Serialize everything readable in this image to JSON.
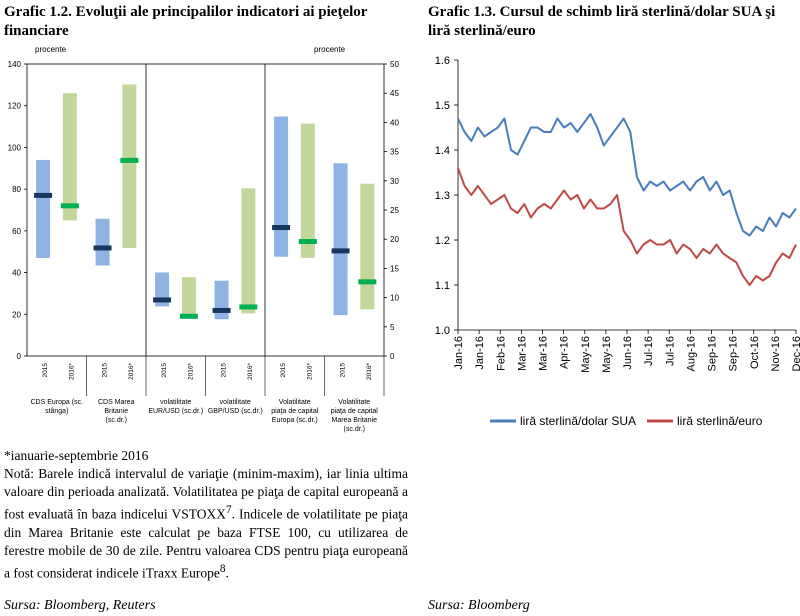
{
  "chart1": {
    "title": "Grafic 1.2.  Evoluţii ale principalilor indicatori ai pieţelor financiare",
    "left_unit": "procente",
    "right_unit": "procente",
    "left_axis": {
      "min": 0,
      "max": 140,
      "ticks": [
        0,
        20,
        40,
        60,
        80,
        100,
        120,
        140
      ]
    },
    "right_axis": {
      "min": 0,
      "max": 50,
      "ticks": [
        0,
        5,
        10,
        15,
        20,
        25,
        30,
        35,
        40,
        45,
        50
      ]
    },
    "chart_data": {
      "type": "bar",
      "title": "Evoluţii ale principalilor indicatori ai pieţelor financiare",
      "groups": [
        {
          "label": "CDS Europa (sc. stânga)",
          "axis": "left",
          "bars": [
            {
              "period": "2015",
              "min": 47,
              "max": 94,
              "last": 77
            },
            {
              "period": "2016*",
              "min": 65,
              "max": 126,
              "last": 72
            }
          ]
        },
        {
          "label": "CDS Marea Britanie (sc.dr.)",
          "axis": "right",
          "bars": [
            {
              "period": "2015",
              "min": 15.5,
              "max": 23.5,
              "last": 18.5
            },
            {
              "period": "2016*",
              "min": 18.5,
              "max": 46.5,
              "last": 33.5
            }
          ]
        },
        {
          "label": "volatilitate EUR/USD (sc.dr.)",
          "axis": "right",
          "bars": [
            {
              "period": "2015",
              "min": 8.5,
              "max": 14.3,
              "last": 9.6
            },
            {
              "period": "2016*",
              "min": 6.5,
              "max": 13.5,
              "last": 6.8
            }
          ]
        },
        {
          "label": "volatilitate GBP/USD (sc.dr.)",
          "axis": "right",
          "bars": [
            {
              "period": "2015",
              "min": 6.3,
              "max": 12.9,
              "last": 7.8
            },
            {
              "period": "2016*",
              "min": 7.3,
              "max": 28.7,
              "last": 8.4
            }
          ]
        },
        {
          "label": "Volatilitate piaţa de capital Europa (sc.dr.)",
          "axis": "right",
          "bars": [
            {
              "period": "2015",
              "min": 17.0,
              "max": 41.0,
              "last": 22.0
            },
            {
              "period": "2016*",
              "min": 16.8,
              "max": 39.8,
              "last": 19.6
            }
          ]
        },
        {
          "label": "Volatilitate piaţa de capital Marea Britanie (sc.dr.)",
          "axis": "right",
          "bars": [
            {
              "period": "2015",
              "min": 7.0,
              "max": 33.0,
              "last": 18.0
            },
            {
              "period": "2016*",
              "min": 8.0,
              "max": 29.5,
              "last": 12.7
            }
          ]
        }
      ]
    },
    "colors": {
      "bar_2015": "#8fb4e3",
      "bar_2016": "#c3d69b",
      "last_2015": "#17375e",
      "last_2016": "#00b050"
    },
    "note_star": "*ianuarie-septembrie 2016",
    "note_text": "Notă: Barele indică intervalul de variaţie (minim-maxim), iar linia ultima valoare din perioada analizată. Volatilitatea pe piaţa de capital europeană a fost evaluată în baza indicelui VSTOXX",
    "note_sup1": "7",
    "note_text2": ". Indicele de volatilitate pe piaţa din Marea Britanie este calculat pe baza FTSE 100, cu utilizarea de ferestre mobile de 30 de zile. Pentru valoarea CDS pentru piaţa europeană a fost considerat indicele iTraxx Europe",
    "note_sup2": "8",
    "note_end": ".",
    "source": "Sursa: Bloomberg,  Reuters"
  },
  "chart2": {
    "title": "Grafic 1.3.  Cursul de schimb liră sterlină/dolar SUA şi liră sterlină/euro",
    "y_axis": {
      "min": 1.0,
      "max": 1.6,
      "ticks": [
        "1.0",
        "1.1",
        "1.2",
        "1.3",
        "1.4",
        "1.5",
        "1.6"
      ]
    },
    "x_labels": [
      "Jan-16",
      "Jan-16",
      "Feb-16",
      "Mar-16",
      "Mar-16",
      "Apr-16",
      "May-16",
      "May-16",
      "Jun-16",
      "Jul-16",
      "Jul-16",
      "Aug-16",
      "Sep-16",
      "Sep-16",
      "Oct-16",
      "Nov-16",
      "Dec-16"
    ],
    "legend": [
      "liră sterlină/dolar SUA",
      "liră sterlină/euro"
    ],
    "colors": {
      "usd": "#4a7ebb",
      "eur": "#be4b48"
    },
    "chart_data": {
      "type": "line",
      "x_labels": [
        "Jan-16",
        "Jan-16",
        "Feb-16",
        "Mar-16",
        "Mar-16",
        "Apr-16",
        "May-16",
        "May-16",
        "Jun-16",
        "Jul-16",
        "Jul-16",
        "Aug-16",
        "Sep-16",
        "Sep-16",
        "Oct-16",
        "Nov-16",
        "Dec-16"
      ],
      "ylim": [
        1.0,
        1.6
      ],
      "series": [
        {
          "name": "liră sterlină/dolar SUA",
          "values": [
            1.47,
            1.44,
            1.42,
            1.45,
            1.43,
            1.44,
            1.45,
            1.47,
            1.4,
            1.39,
            1.42,
            1.45,
            1.45,
            1.44,
            1.44,
            1.47,
            1.45,
            1.46,
            1.44,
            1.46,
            1.48,
            1.45,
            1.41,
            1.43,
            1.45,
            1.47,
            1.44,
            1.34,
            1.31,
            1.33,
            1.32,
            1.33,
            1.31,
            1.32,
            1.33,
            1.31,
            1.33,
            1.34,
            1.31,
            1.33,
            1.3,
            1.31,
            1.26,
            1.22,
            1.21,
            1.23,
            1.22,
            1.25,
            1.23,
            1.26,
            1.25,
            1.27
          ]
        },
        {
          "name": "liră sterlină/euro",
          "values": [
            1.36,
            1.32,
            1.3,
            1.32,
            1.3,
            1.28,
            1.29,
            1.3,
            1.27,
            1.26,
            1.28,
            1.25,
            1.27,
            1.28,
            1.27,
            1.29,
            1.31,
            1.29,
            1.3,
            1.27,
            1.29,
            1.27,
            1.27,
            1.28,
            1.3,
            1.22,
            1.2,
            1.17,
            1.19,
            1.2,
            1.19,
            1.19,
            1.2,
            1.17,
            1.19,
            1.18,
            1.16,
            1.18,
            1.17,
            1.19,
            1.17,
            1.16,
            1.15,
            1.12,
            1.1,
            1.12,
            1.11,
            1.12,
            1.15,
            1.17,
            1.16,
            1.19
          ]
        }
      ]
    },
    "source": "Sursa: Bloomberg"
  }
}
